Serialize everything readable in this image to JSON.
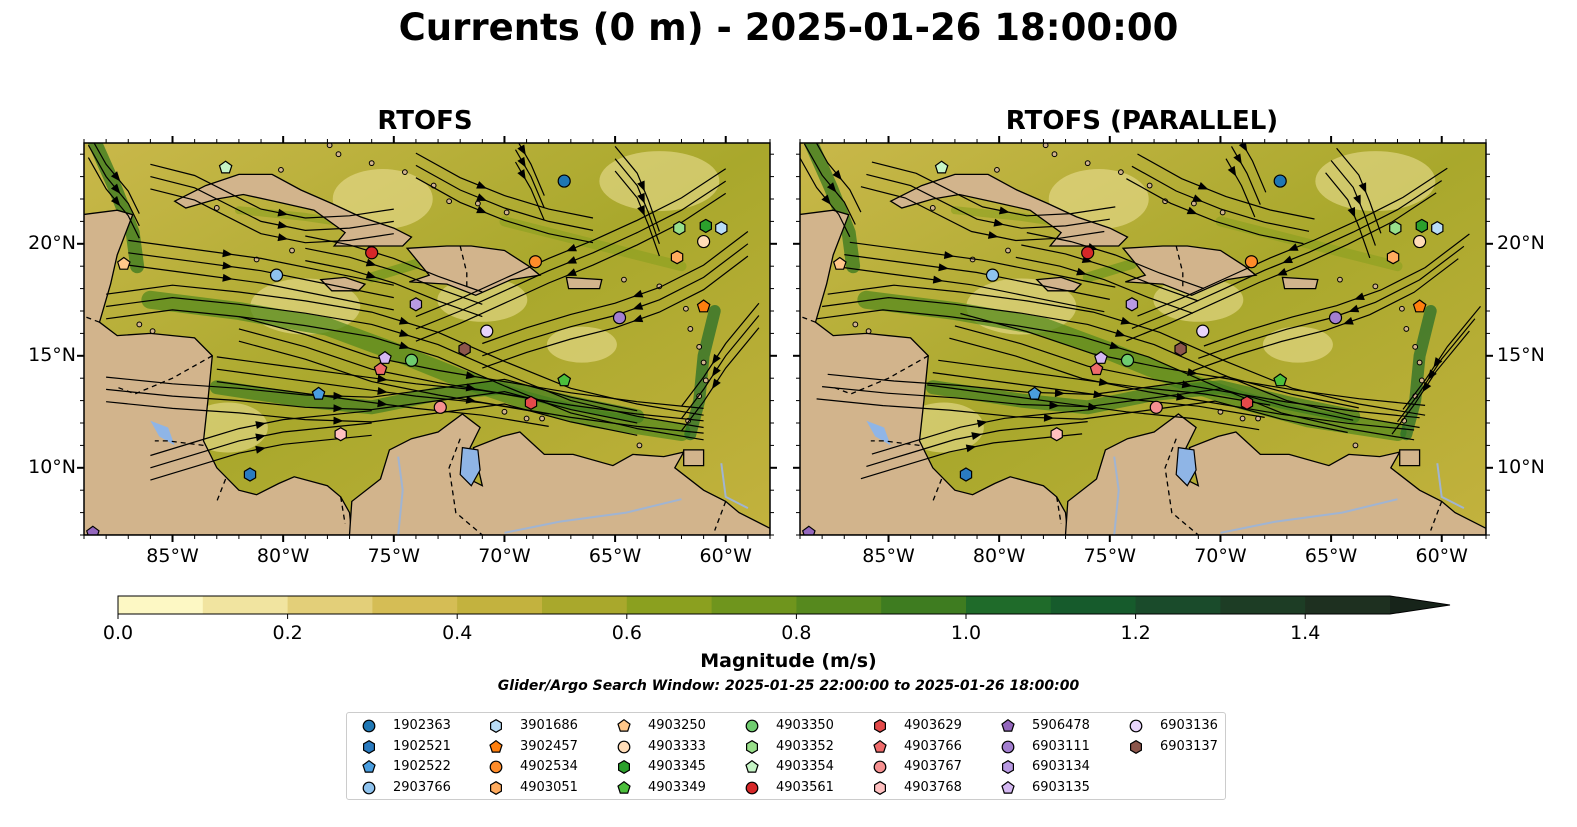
{
  "title": "Currents (0 m) - 2025-01-26 18:00:00",
  "panels": [
    {
      "title": "RTOFS"
    },
    {
      "title": "RTOFS (PARALLEL)"
    }
  ],
  "axes": {
    "longitude_ticks": [
      "85°W",
      "80°W",
      "75°W",
      "70°W",
      "65°W",
      "60°W"
    ],
    "latitude_ticks": [
      "20°N",
      "15°N",
      "10°N"
    ],
    "lon_range": [
      -89.0,
      -58.0
    ],
    "lat_range": [
      7.0,
      24.5
    ]
  },
  "colorbar": {
    "label": "Magnitude (m/s)",
    "ticks": [
      "0.0",
      "0.2",
      "0.4",
      "0.6",
      "0.8",
      "1.0",
      "1.2",
      "1.4"
    ],
    "range": [
      0.0,
      1.5
    ],
    "extend": "max",
    "colors": [
      "#fdf8c4",
      "#f1e4a0",
      "#e3cf79",
      "#d5bd55",
      "#c3b23e",
      "#a9a82c",
      "#8ba01f",
      "#6f951d",
      "#56891e",
      "#3e7c20",
      "#1f6b2a",
      "#165b2c",
      "#1a4b2b",
      "#1d3d25",
      "#1e3020"
    ]
  },
  "search_window": "Glider/Argo Search Window: 2025-01-25 22:00:00 to 2025-01-26 18:00:00",
  "colors": {
    "land": "#d2b48c",
    "water_body": "#8fb5e6",
    "river": "#a0b4d2"
  },
  "platforms": [
    {
      "id": "1902363",
      "marker": "circle",
      "color": "#1f77b4"
    },
    {
      "id": "1902521",
      "marker": "hexagon",
      "color": "#2a7bc0"
    },
    {
      "id": "1902522",
      "marker": "pentagon",
      "color": "#4a9ee0"
    },
    {
      "id": "2903766",
      "marker": "circle",
      "color": "#8fc3ee"
    },
    {
      "id": "3901686",
      "marker": "hexagon",
      "color": "#b9ddf7"
    },
    {
      "id": "3902457",
      "marker": "pentagon",
      "color": "#ff7f0e"
    },
    {
      "id": "4902534",
      "marker": "circle",
      "color": "#ff8c2a"
    },
    {
      "id": "4903051",
      "marker": "hexagon",
      "color": "#ffab5e"
    },
    {
      "id": "4903250",
      "marker": "pentagon",
      "color": "#ffc78a"
    },
    {
      "id": "4903333",
      "marker": "circle",
      "color": "#ffdcb8"
    },
    {
      "id": "4903345",
      "marker": "hexagon",
      "color": "#2ca02c"
    },
    {
      "id": "4903349",
      "marker": "pentagon",
      "color": "#4cbf3c"
    },
    {
      "id": "4903350",
      "marker": "circle",
      "color": "#6fcc6f"
    },
    {
      "id": "4903352",
      "marker": "hexagon",
      "color": "#98df8a"
    },
    {
      "id": "4903354",
      "marker": "pentagon",
      "color": "#c6f5c6"
    },
    {
      "id": "4903561",
      "marker": "circle",
      "color": "#d62728"
    },
    {
      "id": "4903629",
      "marker": "hexagon",
      "color": "#e34a4a"
    },
    {
      "id": "4903766",
      "marker": "pentagon",
      "color": "#ef6b6b"
    },
    {
      "id": "4903767",
      "marker": "circle",
      "color": "#f59090"
    },
    {
      "id": "4903768",
      "marker": "hexagon",
      "color": "#ffc0c0"
    },
    {
      "id": "5906478",
      "marker": "pentagon",
      "color": "#9467bd"
    },
    {
      "id": "6903111",
      "marker": "circle",
      "color": "#a37fd0"
    },
    {
      "id": "6903134",
      "marker": "hexagon",
      "color": "#b99ae3"
    },
    {
      "id": "6903135",
      "marker": "pentagon",
      "color": "#d4b8f2"
    },
    {
      "id": "6903136",
      "marker": "circle",
      "color": "#e8d4fb"
    },
    {
      "id": "6903137",
      "marker": "hexagon",
      "color": "#8c564b"
    }
  ],
  "observations": [
    {
      "id": "1902363",
      "lon": -67.3,
      "lat": 22.8
    },
    {
      "id": "4903354",
      "lon": -82.6,
      "lat": 23.4
    },
    {
      "id": "4903345",
      "lon": -60.9,
      "lat": 20.8
    },
    {
      "id": "3901686",
      "lon": -60.2,
      "lat": 20.7
    },
    {
      "id": "4903352",
      "lon": -62.1,
      "lat": 20.7
    },
    {
      "id": "4903333",
      "lon": -61.0,
      "lat": 20.1
    },
    {
      "id": "4903561",
      "lon": -76.0,
      "lat": 19.6
    },
    {
      "id": "4902534",
      "lon": -68.6,
      "lat": 19.2
    },
    {
      "id": "4903051",
      "lon": -62.2,
      "lat": 19.4
    },
    {
      "id": "4903250",
      "lon": -87.2,
      "lat": 19.1
    },
    {
      "id": "2903766",
      "lon": -80.3,
      "lat": 18.6
    },
    {
      "id": "3902457",
      "lon": -61.0,
      "lat": 17.2
    },
    {
      "id": "6903134",
      "lon": -74.0,
      "lat": 17.3
    },
    {
      "id": "6903111",
      "lon": -64.8,
      "lat": 16.7
    },
    {
      "id": "6903136",
      "lon": -70.8,
      "lat": 16.1
    },
    {
      "id": "6903137",
      "lon": -71.8,
      "lat": 15.3
    },
    {
      "id": "6903135",
      "lon": -75.4,
      "lat": 14.9
    },
    {
      "id": "4903350",
      "lon": -74.2,
      "lat": 14.8
    },
    {
      "id": "4903766",
      "lon": -75.6,
      "lat": 14.4
    },
    {
      "id": "4903349",
      "lon": -67.3,
      "lat": 13.9
    },
    {
      "id": "1902522",
      "lon": -78.4,
      "lat": 13.3
    },
    {
      "id": "4903629",
      "lon": -68.8,
      "lat": 12.9
    },
    {
      "id": "4903767",
      "lon": -72.9,
      "lat": 12.7
    },
    {
      "id": "4903768",
      "lon": -77.4,
      "lat": 11.5
    },
    {
      "id": "1902521",
      "lon": -81.5,
      "lat": 9.7
    },
    {
      "id": "5906478",
      "lon": -88.6,
      "lat": 7.1
    }
  ]
}
